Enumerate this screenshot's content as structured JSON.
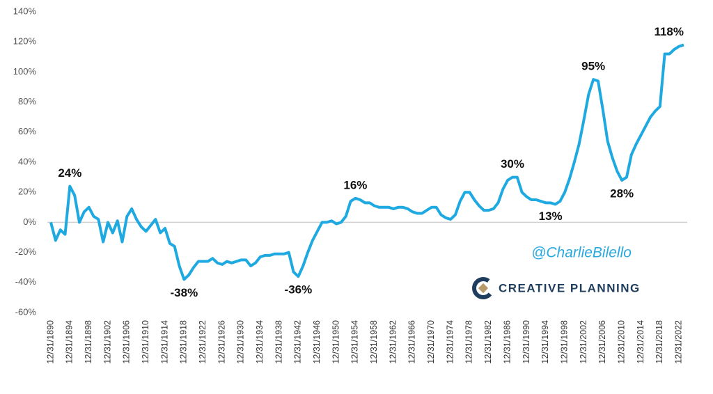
{
  "chart_data": {
    "type": "line",
    "categories": [
      "12/31/1890",
      null,
      null,
      null,
      "12/31/1894",
      null,
      null,
      null,
      "12/31/1898",
      null,
      null,
      null,
      "12/31/1902",
      null,
      null,
      null,
      "12/31/1906",
      null,
      null,
      null,
      "12/31/1910",
      null,
      null,
      null,
      "12/31/1914",
      null,
      null,
      null,
      "12/31/1918",
      null,
      null,
      null,
      "12/31/1922",
      null,
      null,
      null,
      "12/31/1926",
      null,
      null,
      null,
      "12/31/1930",
      null,
      null,
      null,
      "12/31/1934",
      null,
      null,
      null,
      "12/31/1938",
      null,
      null,
      null,
      "12/31/1942",
      null,
      null,
      null,
      "12/31/1946",
      null,
      null,
      null,
      "12/31/1950",
      null,
      null,
      null,
      "12/31/1954",
      null,
      null,
      null,
      "12/31/1958",
      null,
      null,
      null,
      "12/31/1962",
      null,
      null,
      null,
      "12/31/1966",
      null,
      null,
      null,
      "12/31/1970",
      null,
      null,
      null,
      "12/31/1974",
      null,
      null,
      null,
      "12/31/1978",
      null,
      null,
      null,
      "12/31/1982",
      null,
      null,
      null,
      "12/31/1986",
      null,
      null,
      null,
      "12/31/1990",
      null,
      null,
      null,
      "12/31/1994",
      null,
      null,
      null,
      "12/31/1998",
      null,
      null,
      null,
      "12/31/2002",
      null,
      null,
      null,
      "12/31/2006",
      null,
      null,
      null,
      "12/31/2010",
      null,
      null,
      null,
      "12/31/2014",
      null,
      null,
      null,
      "12/31/2018",
      null,
      null,
      null,
      "12/31/2022",
      null
    ],
    "values": [
      0,
      -12,
      -5,
      -8,
      24,
      18,
      0,
      7,
      10,
      4,
      2,
      -13,
      0,
      -7,
      1,
      -13,
      4,
      9,
      2,
      -3,
      -6,
      -2,
      2,
      -7,
      -4,
      -14,
      -16,
      -29,
      -38,
      -35,
      -30,
      -26,
      -26,
      -26,
      -24,
      -27,
      -28,
      -26,
      -27,
      -26,
      -25,
      -25,
      -29,
      -27,
      -23,
      -22,
      -22,
      -21,
      -21,
      -21,
      -20,
      -33,
      -36,
      -29,
      -20,
      -12,
      -6,
      0,
      0,
      1,
      -1,
      0,
      4,
      14,
      16,
      15,
      13,
      13,
      11,
      10,
      10,
      10,
      9,
      10,
      10,
      9,
      7,
      6,
      6,
      8,
      10,
      10,
      5,
      3,
      2,
      5,
      14,
      20,
      20,
      15,
      11,
      8,
      8,
      9,
      13,
      22,
      28,
      30,
      30,
      20,
      17,
      15,
      15,
      14,
      13,
      13,
      12,
      14,
      20,
      29,
      40,
      52,
      68,
      85,
      95,
      94,
      75,
      54,
      43,
      34,
      28,
      30,
      45,
      52,
      58,
      64,
      70,
      74,
      77,
      112,
      112,
      115,
      117,
      118
    ],
    "value_labels": [
      null,
      null,
      null,
      null,
      "24%",
      null,
      null,
      null,
      null,
      null,
      null,
      null,
      null,
      null,
      null,
      null,
      null,
      null,
      null,
      null,
      null,
      null,
      null,
      null,
      null,
      null,
      null,
      null,
      "-38%",
      null,
      null,
      null,
      null,
      null,
      null,
      null,
      null,
      null,
      null,
      null,
      null,
      null,
      null,
      null,
      null,
      null,
      null,
      null,
      null,
      null,
      null,
      null,
      "-36%",
      null,
      null,
      null,
      null,
      null,
      null,
      null,
      null,
      null,
      null,
      null,
      "16%",
      null,
      null,
      null,
      null,
      null,
      null,
      null,
      null,
      null,
      null,
      null,
      null,
      null,
      null,
      null,
      null,
      null,
      null,
      null,
      null,
      null,
      null,
      null,
      null,
      null,
      null,
      null,
      null,
      null,
      null,
      null,
      null,
      "30%",
      null,
      null,
      null,
      null,
      null,
      null,
      null,
      "13%",
      null,
      null,
      null,
      null,
      null,
      null,
      null,
      null,
      "95%",
      null,
      null,
      null,
      null,
      null,
      "28%",
      null,
      null,
      null,
      null,
      null,
      null,
      null,
      null,
      null,
      null,
      null,
      null,
      "118%"
    ],
    "color": "#1ea9e1",
    "ylim": [
      -60,
      140
    ],
    "yticks": [
      {
        "value": -60,
        "label": "-60%"
      },
      {
        "value": -40,
        "label": "-40%"
      },
      {
        "value": -20,
        "label": "-20%"
      },
      {
        "value": 0,
        "label": "0%"
      },
      {
        "value": 20,
        "label": "20%"
      },
      {
        "value": 40,
        "label": "40%"
      },
      {
        "value": 60,
        "label": "60%"
      },
      {
        "value": 80,
        "label": "80%"
      },
      {
        "value": 100,
        "label": "100%"
      },
      {
        "value": 120,
        "label": "120%"
      },
      {
        "value": 140,
        "label": "140%"
      }
    ],
    "watermark": "@CharlieBilello",
    "logo_text": "CREATIVE PLANNING"
  }
}
